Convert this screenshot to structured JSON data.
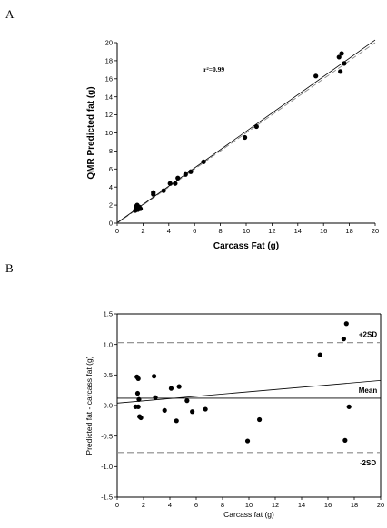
{
  "chart_data": [
    {
      "panel": "A",
      "type": "scatter",
      "xlabel": "Carcass Fat (g)",
      "ylabel": "QMR Predicted fat (g)",
      "annotation": "r²=0.99",
      "xlim": [
        0,
        20
      ],
      "ylim": [
        0,
        20
      ],
      "xticks": [
        0,
        2,
        4,
        6,
        8,
        10,
        12,
        14,
        16,
        18,
        20
      ],
      "yticks": [
        0,
        2,
        4,
        6,
        8,
        10,
        12,
        14,
        16,
        18,
        20
      ],
      "points": [
        [
          1.4,
          1.4
        ],
        [
          1.5,
          1.7
        ],
        [
          1.55,
          2.0
        ],
        [
          1.6,
          1.5
        ],
        [
          1.7,
          1.8
        ],
        [
          1.8,
          1.6
        ],
        [
          1.5,
          1.9
        ],
        [
          2.8,
          3.2
        ],
        [
          2.8,
          3.4
        ],
        [
          3.6,
          3.6
        ],
        [
          4.1,
          4.4
        ],
        [
          4.5,
          4.4
        ],
        [
          4.7,
          5.0
        ],
        [
          5.3,
          5.4
        ],
        [
          5.7,
          5.7
        ],
        [
          6.7,
          6.8
        ],
        [
          9.9,
          9.5
        ],
        [
          10.8,
          10.7
        ],
        [
          15.4,
          16.3
        ],
        [
          17.2,
          18.4
        ],
        [
          17.4,
          18.8
        ],
        [
          17.3,
          16.8
        ],
        [
          17.6,
          17.7
        ]
      ],
      "regression_line": [
        [
          0,
          0.05
        ],
        [
          20,
          20.3
        ]
      ],
      "identity_line": [
        [
          0,
          0
        ],
        [
          20,
          20
        ]
      ]
    },
    {
      "panel": "B",
      "type": "scatter",
      "xlabel": "Carcass fat (g)",
      "ylabel": "Predicted fat - carcass fat (g)",
      "xlim": [
        0,
        20
      ],
      "ylim": [
        -1.5,
        1.5
      ],
      "xticks": [
        0,
        2,
        4,
        6,
        8,
        10,
        12,
        14,
        16,
        18,
        20
      ],
      "yticks": [
        -1.5,
        -1.0,
        -0.5,
        0.0,
        0.5,
        1.0,
        1.5
      ],
      "points": [
        [
          1.4,
          -0.02
        ],
        [
          1.5,
          0.47
        ],
        [
          1.55,
          0.2
        ],
        [
          1.6,
          0.44
        ],
        [
          1.6,
          -0.02
        ],
        [
          1.65,
          0.1
        ],
        [
          1.7,
          -0.18
        ],
        [
          1.8,
          -0.2
        ],
        [
          2.8,
          0.48
        ],
        [
          2.9,
          0.13
        ],
        [
          3.6,
          -0.08
        ],
        [
          4.1,
          0.28
        ],
        [
          4.5,
          -0.25
        ],
        [
          4.7,
          0.31
        ],
        [
          5.3,
          0.08
        ],
        [
          5.7,
          -0.1
        ],
        [
          6.7,
          -0.06
        ],
        [
          9.9,
          -0.58
        ],
        [
          10.8,
          -0.23
        ],
        [
          15.4,
          0.83
        ],
        [
          17.2,
          1.09
        ],
        [
          17.4,
          1.34
        ],
        [
          17.3,
          -0.57
        ],
        [
          17.6,
          -0.02
        ]
      ],
      "regression_line": [
        [
          0,
          0.04
        ],
        [
          20,
          0.41
        ]
      ],
      "mean": 0.12,
      "plus_2sd": 1.03,
      "minus_2sd": -0.77,
      "reference_labels": {
        "plus": "+2SD",
        "mean": "Mean",
        "minus": "-2SD"
      }
    }
  ]
}
